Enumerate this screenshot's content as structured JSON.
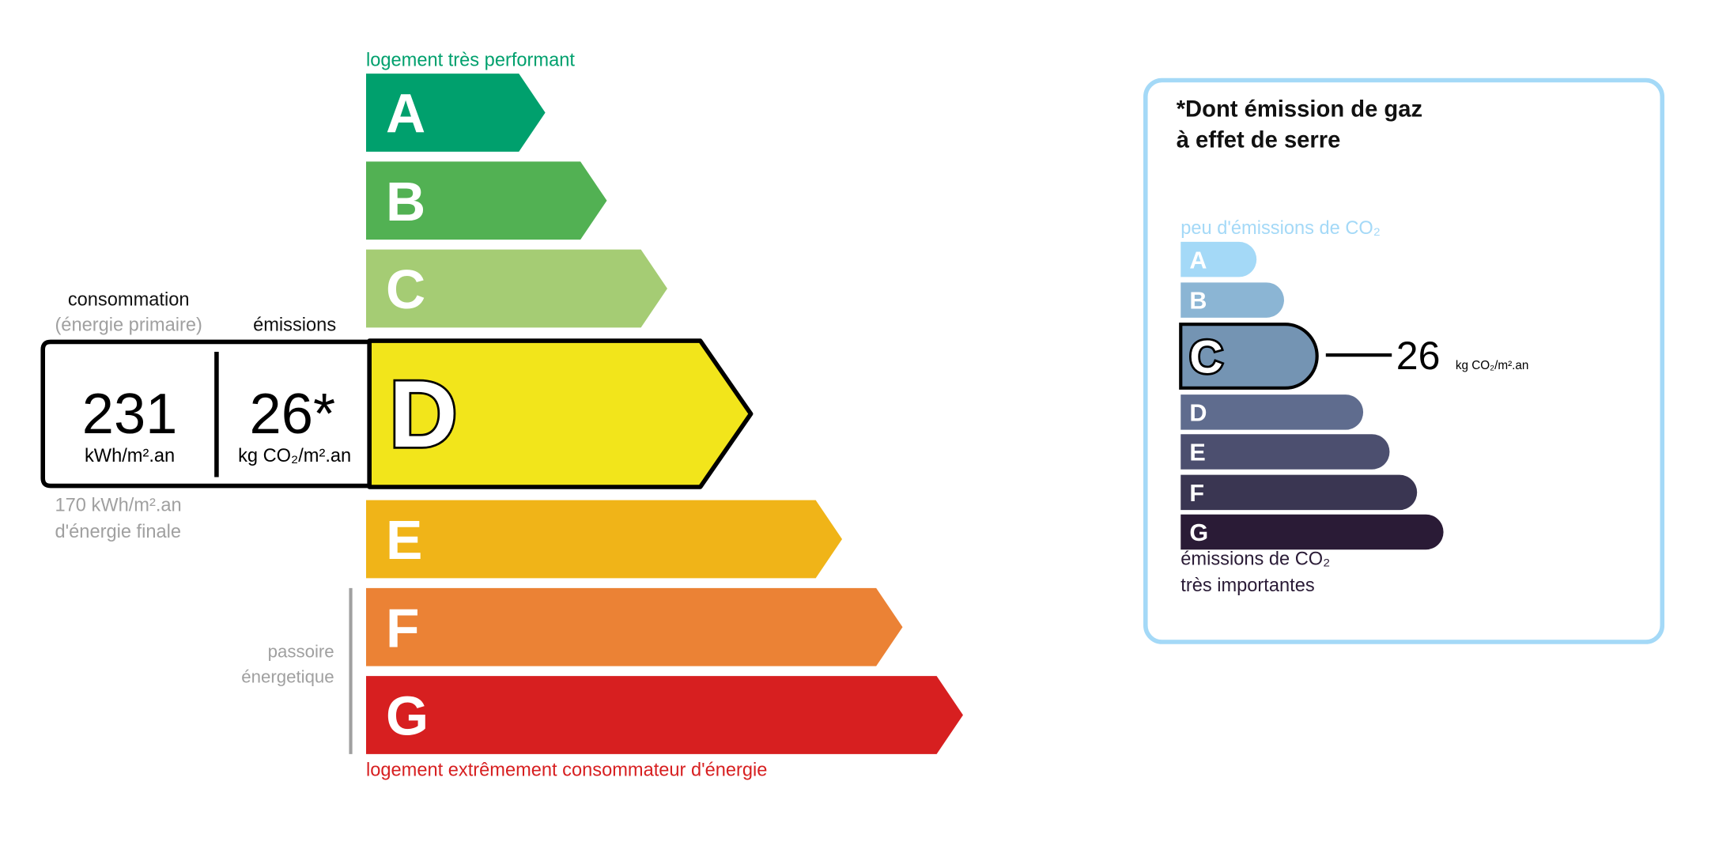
{
  "energy": {
    "top_label": "logement très performant",
    "bottom_label": "logement extrêmement consommateur d'énergie",
    "passoire_line1": "passoire",
    "passoire_line2": "énergetique",
    "current_class": "D",
    "classes": [
      {
        "letter": "A",
        "color": "#00a06d"
      },
      {
        "letter": "B",
        "color": "#52b153"
      },
      {
        "letter": "C",
        "color": "#a5cc74"
      },
      {
        "letter": "D",
        "color": "#f2e51b"
      },
      {
        "letter": "E",
        "color": "#f0b418"
      },
      {
        "letter": "F",
        "color": "#eb8235"
      },
      {
        "letter": "G",
        "color": "#d71f20"
      }
    ],
    "top_label_color": "#00a06d",
    "bottom_label_color": "#d71f20"
  },
  "summary": {
    "consumption_label": "consommation",
    "consumption_sub": "(énergie primaire)",
    "emissions_label": "émissions",
    "consumption_value": "231",
    "consumption_unit": "kWh/m².an",
    "emissions_value": "26*",
    "emissions_unit": "kg CO₂/m².an",
    "final_value": "170 kWh/m².an",
    "final_label": "d'énergie finale"
  },
  "ges": {
    "title_line1": "*Dont émission de gaz",
    "title_line2": "à effet de serre",
    "top_label": "peu d'émissions de CO₂",
    "bottom_line1": "émissions de CO₂",
    "bottom_line2": "très importantes",
    "current_class": "C",
    "value": "26",
    "unit": "kg CO₂/m².an",
    "border_color": "#a4d9f7",
    "classes": [
      {
        "letter": "A",
        "color": "#a4d9f7"
      },
      {
        "letter": "B",
        "color": "#8bb5d4"
      },
      {
        "letter": "C",
        "color": "#7494b3"
      },
      {
        "letter": "D",
        "color": "#5f6c8e"
      },
      {
        "letter": "E",
        "color": "#4c4f6f"
      },
      {
        "letter": "F",
        "color": "#3a3652"
      },
      {
        "letter": "G",
        "color": "#2a1b36"
      }
    ]
  }
}
